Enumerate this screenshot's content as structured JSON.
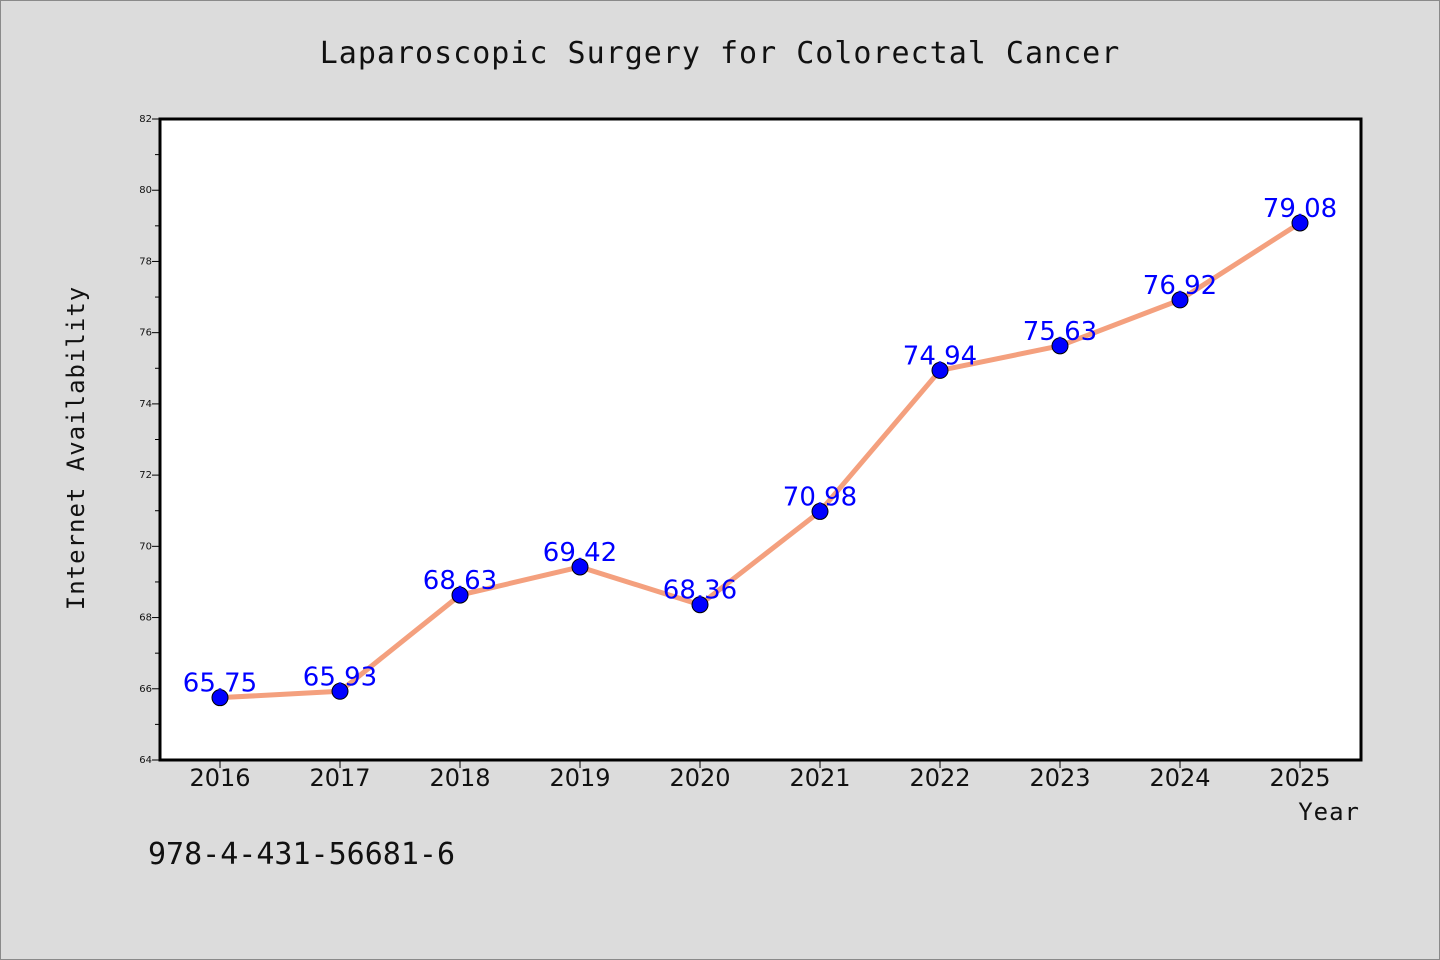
{
  "chart_data": {
    "type": "line",
    "title": "Laparoscopic Surgery for Colorectal Cancer",
    "xlabel": "Year",
    "ylabel": "Internet Availability",
    "categories": [
      "2016",
      "2017",
      "2018",
      "2019",
      "2020",
      "2021",
      "2022",
      "2023",
      "2024",
      "2025"
    ],
    "values": [
      65.75,
      65.93,
      68.63,
      69.42,
      68.36,
      70.98,
      74.94,
      75.63,
      76.92,
      79.08
    ],
    "value_labels": [
      "65.75",
      "65.93",
      "68.63",
      "69.42",
      "68.36",
      "70.98",
      "74.94",
      "75.63",
      "76.92",
      "79.08"
    ],
    "ylim": [
      64,
      82
    ],
    "yticks": [
      "64",
      "66",
      "68",
      "70",
      "72",
      "74",
      "76",
      "78",
      "80",
      "82"
    ],
    "grid": false,
    "legend": "none",
    "colors": {
      "line": "#f4a07e",
      "marker": "#0000ff",
      "data_label": "#0000ff",
      "background": "#dcdcdc",
      "plot_area": "#ffffff"
    }
  },
  "footer_code": "978-4-431-56681-6"
}
